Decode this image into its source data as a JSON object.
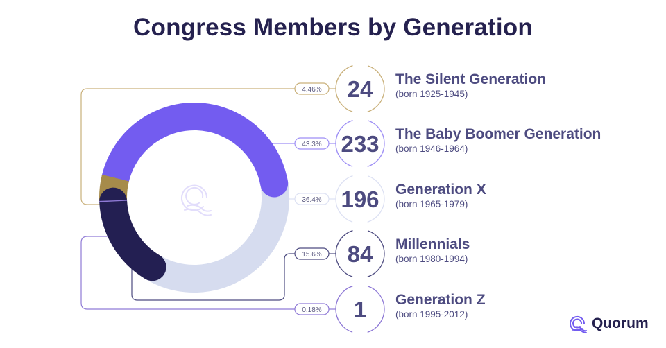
{
  "title": "Congress Members by Generation",
  "chart_data": {
    "type": "pie",
    "subtype": "donut",
    "title": "Congress Members by Generation",
    "items": [
      {
        "name": "The Silent Generation",
        "born": "(born 1925-1945)",
        "value": 24,
        "value_label": "24",
        "percent_label": "4.46%",
        "color": "#a68b4b",
        "line_color": "#c9b07a"
      },
      {
        "name": "The Baby Boomer Generation",
        "born": "(born 1946-1964)",
        "value": 233,
        "value_label": "233",
        "percent_label": "43.3%",
        "color": "#735cf0",
        "line_color": "#9d8ef5"
      },
      {
        "name": "Generation X",
        "born": "(born 1965-1979)",
        "value": 196,
        "value_label": "196",
        "percent_label": "36.4%",
        "color": "#d6dcef",
        "line_color": "#dde1f3"
      },
      {
        "name": "Millennials",
        "born": "(born 1980-1994)",
        "value": 84,
        "value_label": "84",
        "percent_label": "15.6%",
        "color": "#231f52",
        "line_color": "#4d4b80"
      },
      {
        "name": "Generation Z",
        "born": "(born 1995-2012)",
        "value": 1,
        "value_label": "1",
        "percent_label": "0.18%",
        "color": "#8f7ad6",
        "line_color": "#8f7ad6"
      }
    ]
  },
  "logo": {
    "text": "Quorum",
    "color": "#735cf0"
  }
}
